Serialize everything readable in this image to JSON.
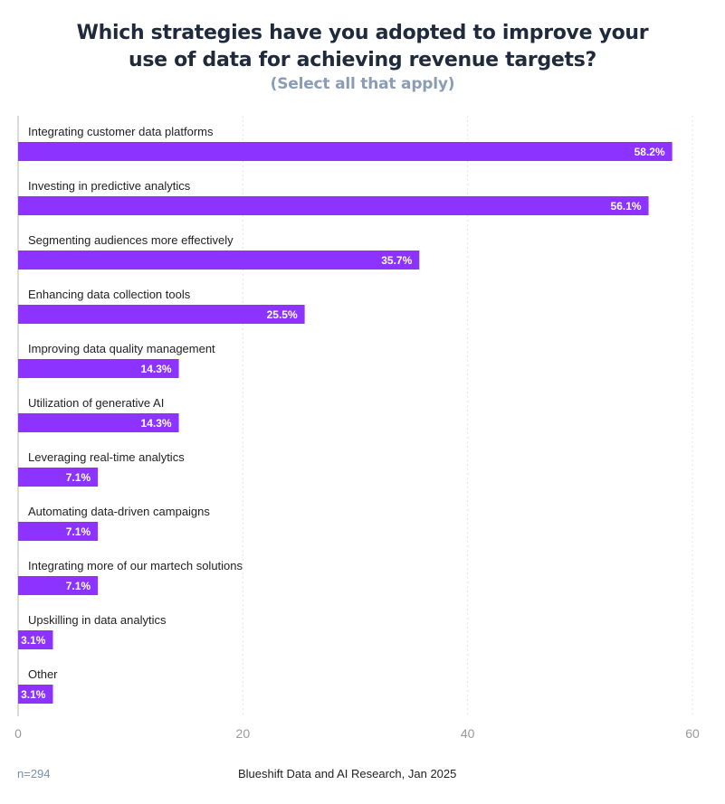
{
  "chart_data": {
    "type": "bar",
    "orientation": "horizontal",
    "title": "Which strategies have you adopted to improve your use of data for achieving revenue targets?",
    "title_lines": [
      "Which strategies have you adopted to improve your",
      "use of data for achieving revenue targets?"
    ],
    "subtitle": "(Select all that apply)",
    "xlabel": "",
    "ylabel": "",
    "xlim": [
      0,
      60
    ],
    "xticks": [
      0,
      20,
      40,
      60
    ],
    "grid": true,
    "categories": [
      "Integrating customer data platforms",
      "Investing in predictive analytics",
      "Segmenting audiences more effectively",
      "Enhancing data collection tools",
      "Improving data quality management",
      "Utilization of generative AI",
      "Leveraging real-time analytics",
      "Automating data-driven campaigns",
      "Integrating more of our martech solutions",
      "Upskilling in data analytics",
      "Other"
    ],
    "values": [
      58.2,
      56.1,
      35.7,
      25.5,
      14.3,
      14.3,
      7.1,
      7.1,
      7.1,
      3.1,
      3.1
    ],
    "value_labels": [
      "58.2%",
      "56.1%",
      "35.7%",
      "25.5%",
      "14.3%",
      "14.3%",
      "7.1%",
      "7.1%",
      "7.1%",
      "3.1%",
      "3.1%"
    ],
    "bar_color": "#8c33ff",
    "sample_size": "n=294",
    "source": "Blueshift Data and AI Research, Jan 2025"
  }
}
